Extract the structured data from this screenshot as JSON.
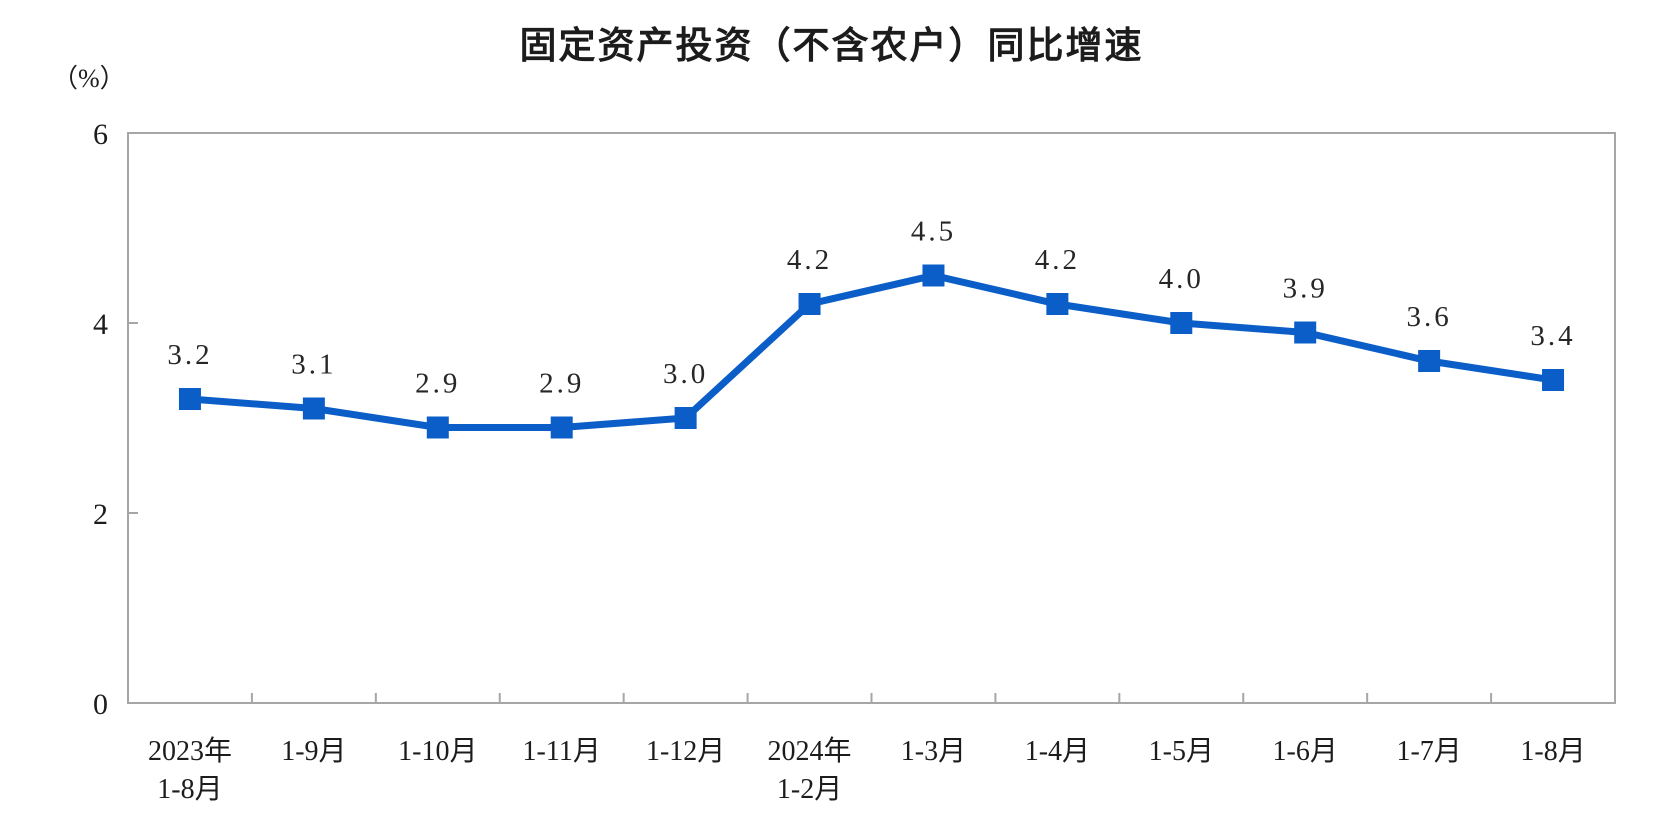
{
  "page": {
    "title": "固定资产投资（不含农户）同比增速",
    "unit_label": "（%）"
  },
  "chart_data": {
    "type": "line",
    "title": "固定资产投资（不含农户）同比增速",
    "ylabel": "（%）",
    "xlabel": "",
    "categories": [
      "2023年\n1-8月",
      "1-9月",
      "1-10月",
      "1-11月",
      "1-12月",
      "2024年\n1-2月",
      "1-3月",
      "1-4月",
      "1-5月",
      "1-6月",
      "1-7月",
      "1-8月"
    ],
    "values": [
      3.2,
      3.1,
      2.9,
      2.9,
      3.0,
      4.2,
      4.5,
      4.2,
      4.0,
      3.9,
      3.6,
      3.4
    ],
    "ylim": [
      0,
      6
    ],
    "yticks": [
      0,
      2,
      4,
      6
    ],
    "grid": false,
    "legend": "none",
    "data_labels": true,
    "marker": "square",
    "line_color": "#0B5EC7",
    "axis_color": "#A6A6A6",
    "text_color": "#1c1c1c"
  }
}
